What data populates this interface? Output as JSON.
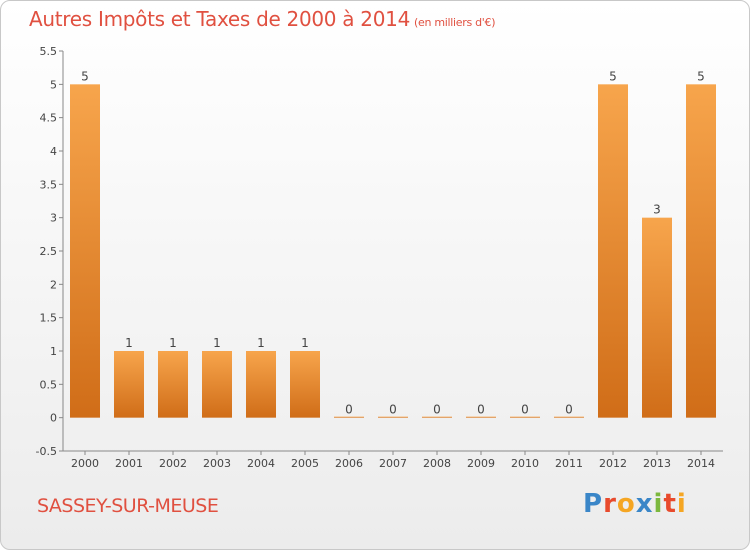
{
  "header": {
    "title": "Autres Impôts et Taxes de 2000 à 2014",
    "unit": "(en milliers d'€)"
  },
  "footer": {
    "commune": "SASSEY-SUR-MEUSE",
    "logo": [
      "P",
      "r",
      "o",
      "x",
      "i",
      "t",
      "i"
    ]
  },
  "colors": {
    "title": "#e05040",
    "bar_top": "#f7a54c",
    "bar_bottom": "#d06d18",
    "logo": [
      "#3a86c8",
      "#e84a2c",
      "#f5a623",
      "#3a86c8",
      "#7cb83e",
      "#e84a2c",
      "#f5a623"
    ]
  },
  "chart_data": {
    "type": "bar",
    "title": "Autres Impôts et Taxes de 2000 à 2014",
    "xlabel": "",
    "ylabel": "",
    "categories": [
      "2000",
      "2001",
      "2002",
      "2003",
      "2004",
      "2005",
      "2006",
      "2007",
      "2008",
      "2009",
      "2010",
      "2011",
      "2012",
      "2013",
      "2014"
    ],
    "values": [
      5,
      1,
      1,
      1,
      1,
      1,
      0,
      0,
      0,
      0,
      0,
      0,
      5,
      3,
      5
    ],
    "ylim": [
      -0.5,
      5.5
    ],
    "yticks": [
      -0.5,
      0,
      0.5,
      1,
      1.5,
      2,
      2.5,
      3,
      3.5,
      4,
      4.5,
      5,
      5.5
    ],
    "grid": false
  }
}
